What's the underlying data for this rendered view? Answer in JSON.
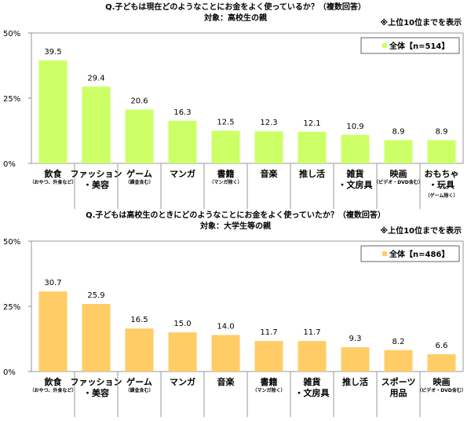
{
  "chart_data": [
    {
      "type": "bar",
      "title": "Q.子どもは現在どのようなことにお金をよく使っているか？（複数回答）",
      "subtitle": "対象：高校生の親",
      "note": "※上位10位までを表示",
      "legend": "全体【n=514】",
      "legend_position": "top-right",
      "color": "#ccff66",
      "ylim": [
        0,
        50
      ],
      "yticks": [
        "0%",
        "25%",
        "50%"
      ],
      "categories": [
        [
          "飲食",
          "（おやつ、外食など）"
        ],
        [
          "ファッション",
          "・美容"
        ],
        [
          "ゲーム",
          "（課金含む）"
        ],
        [
          "マンガ",
          ""
        ],
        [
          "書籍",
          "（マンガ除く）"
        ],
        [
          "音楽",
          ""
        ],
        [
          "推し活",
          ""
        ],
        [
          "雑貨",
          "・文房具"
        ],
        [
          "映画",
          "（ビデオ・DVD含む）"
        ],
        [
          "おもちゃ",
          "・玩具",
          "（ゲーム除く）"
        ]
      ],
      "values": [
        39.5,
        29.4,
        20.6,
        16.3,
        12.5,
        12.3,
        12.1,
        10.9,
        8.9,
        8.9
      ]
    },
    {
      "type": "bar",
      "title": "Q.子どもは高校生のときにどのようなことにお金をよく使っていたか？（複数回答）",
      "subtitle": "対象：大学生等の親",
      "note": "※上位10位までを表示",
      "legend": "全体【n=486】",
      "legend_position": "top-right",
      "color": "#ffcc66",
      "ylim": [
        0,
        50
      ],
      "yticks": [
        "0%",
        "25%",
        "50%"
      ],
      "categories": [
        [
          "飲食",
          "（おやつ、外食など）"
        ],
        [
          "ファッション",
          "・美容"
        ],
        [
          "ゲーム",
          "（課金含む）"
        ],
        [
          "マンガ",
          ""
        ],
        [
          "音楽",
          ""
        ],
        [
          "書籍",
          "（マンガ除く）"
        ],
        [
          "雑貨",
          "・文房具"
        ],
        [
          "推し活",
          ""
        ],
        [
          "スポーツ",
          "用品"
        ],
        [
          "映画",
          "（ビデオ・DVD含む）"
        ]
      ],
      "values": [
        30.7,
        25.9,
        16.5,
        15.0,
        14.0,
        11.7,
        11.7,
        9.3,
        8.2,
        6.6
      ]
    }
  ]
}
